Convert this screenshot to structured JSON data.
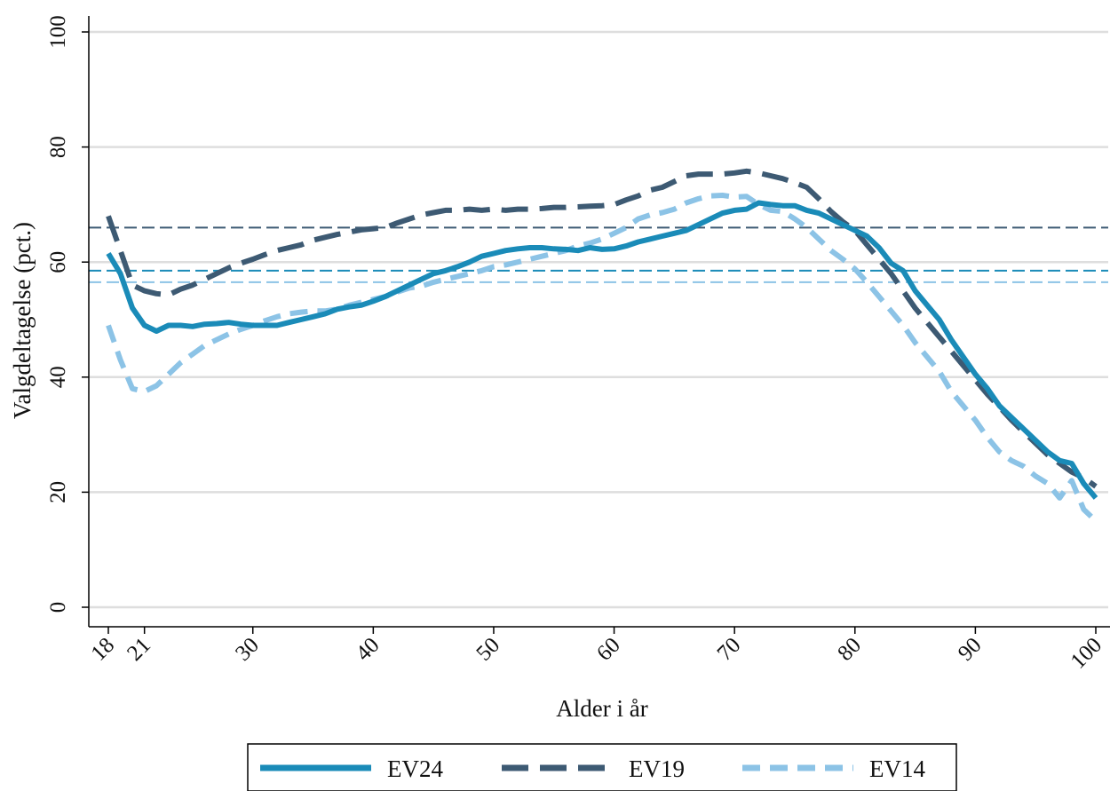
{
  "chart_data": {
    "type": "line",
    "xlabel": "Alder i år",
    "ylabel": "Valgdeltagelse (pct.)",
    "xlim": [
      18,
      100
    ],
    "ylim": [
      0,
      100
    ],
    "x_ticks": [
      18,
      21,
      30,
      40,
      50,
      60,
      70,
      80,
      90,
      100
    ],
    "y_ticks": [
      0,
      20,
      40,
      60,
      80,
      100
    ],
    "grid": "horizontal",
    "legend_position": "bottom",
    "colors": {
      "EV24": "#1a8bb8",
      "EV19": "#3d5a73",
      "EV14": "#8cc3e6",
      "grid": "#dedede"
    },
    "reference_lines": [
      {
        "series": "EV19",
        "y": 66
      },
      {
        "series": "EV24",
        "y": 58.5
      },
      {
        "series": "EV14",
        "y": 56.5
      }
    ],
    "series": [
      {
        "name": "EV24",
        "dash": "solid",
        "points": [
          [
            18,
            61.5
          ],
          [
            19,
            58
          ],
          [
            20,
            52
          ],
          [
            21,
            49
          ],
          [
            22,
            48
          ],
          [
            23,
            49
          ],
          [
            24,
            49
          ],
          [
            25,
            48.8
          ],
          [
            26,
            49.2
          ],
          [
            27,
            49.3
          ],
          [
            28,
            49.5
          ],
          [
            29,
            49.2
          ],
          [
            30,
            49
          ],
          [
            31,
            49
          ],
          [
            32,
            49
          ],
          [
            33,
            49.5
          ],
          [
            34,
            50
          ],
          [
            35,
            50.5
          ],
          [
            36,
            51
          ],
          [
            37,
            51.8
          ],
          [
            38,
            52.2
          ],
          [
            39,
            52.5
          ],
          [
            40,
            53.2
          ],
          [
            41,
            54
          ],
          [
            42,
            55
          ],
          [
            43,
            56
          ],
          [
            44,
            57
          ],
          [
            45,
            58
          ],
          [
            46,
            58.5
          ],
          [
            47,
            59.2
          ],
          [
            48,
            60
          ],
          [
            49,
            61
          ],
          [
            50,
            61.5
          ],
          [
            51,
            62
          ],
          [
            52,
            62.3
          ],
          [
            53,
            62.5
          ],
          [
            54,
            62.5
          ],
          [
            55,
            62.3
          ],
          [
            56,
            62.2
          ],
          [
            57,
            62
          ],
          [
            58,
            62.5
          ],
          [
            59,
            62.2
          ],
          [
            60,
            62.3
          ],
          [
            61,
            62.8
          ],
          [
            62,
            63.5
          ],
          [
            63,
            64
          ],
          [
            64,
            64.5
          ],
          [
            65,
            65
          ],
          [
            66,
            65.5
          ],
          [
            67,
            66.5
          ],
          [
            68,
            67.5
          ],
          [
            69,
            68.5
          ],
          [
            70,
            69
          ],
          [
            71,
            69.2
          ],
          [
            72,
            70.3
          ],
          [
            73,
            70
          ],
          [
            74,
            69.8
          ],
          [
            75,
            69.8
          ],
          [
            76,
            69
          ],
          [
            77,
            68.5
          ],
          [
            78,
            67.5
          ],
          [
            79,
            66.5
          ],
          [
            80,
            65.5
          ],
          [
            81,
            64.5
          ],
          [
            82,
            62.5
          ],
          [
            83,
            59.8
          ],
          [
            84,
            58.5
          ],
          [
            85,
            55
          ],
          [
            86,
            52.5
          ],
          [
            87,
            50
          ],
          [
            88,
            46.5
          ],
          [
            89,
            43.5
          ],
          [
            90,
            40.5
          ],
          [
            91,
            38
          ],
          [
            92,
            35
          ],
          [
            93,
            33
          ],
          [
            94,
            31
          ],
          [
            95,
            29
          ],
          [
            96,
            27
          ],
          [
            97,
            25.5
          ],
          [
            98,
            25
          ],
          [
            99,
            21.5
          ],
          [
            100,
            19
          ]
        ]
      },
      {
        "name": "EV19",
        "dash": "long-dash",
        "points": [
          [
            18,
            68
          ],
          [
            19,
            62
          ],
          [
            20,
            56
          ],
          [
            21,
            55
          ],
          [
            22,
            54.5
          ],
          [
            23,
            54.3
          ],
          [
            24,
            55.3
          ],
          [
            25,
            56
          ],
          [
            26,
            57
          ],
          [
            27,
            58
          ],
          [
            28,
            59
          ],
          [
            29,
            59.8
          ],
          [
            30,
            60.5
          ],
          [
            31,
            61.3
          ],
          [
            32,
            62
          ],
          [
            33,
            62.5
          ],
          [
            34,
            63
          ],
          [
            35,
            63.8
          ],
          [
            36,
            64.3
          ],
          [
            37,
            64.8
          ],
          [
            38,
            65.2
          ],
          [
            39,
            65.6
          ],
          [
            40,
            65.8
          ],
          [
            41,
            66
          ],
          [
            42,
            66.8
          ],
          [
            43,
            67.5
          ],
          [
            44,
            68.2
          ],
          [
            45,
            68.6
          ],
          [
            46,
            69
          ],
          [
            47,
            69
          ],
          [
            48,
            69.2
          ],
          [
            49,
            69
          ],
          [
            50,
            69.2
          ],
          [
            51,
            69
          ],
          [
            52,
            69.2
          ],
          [
            53,
            69.2
          ],
          [
            54,
            69.3
          ],
          [
            55,
            69.5
          ],
          [
            56,
            69.5
          ],
          [
            57,
            69.6
          ],
          [
            58,
            69.7
          ],
          [
            59,
            69.8
          ],
          [
            60,
            70
          ],
          [
            61,
            70.8
          ],
          [
            62,
            71.5
          ],
          [
            63,
            72.5
          ],
          [
            64,
            73
          ],
          [
            65,
            74
          ],
          [
            66,
            75
          ],
          [
            67,
            75.3
          ],
          [
            68,
            75.3
          ],
          [
            69,
            75.3
          ],
          [
            70,
            75.5
          ],
          [
            71,
            75.8
          ],
          [
            72,
            75.5
          ],
          [
            73,
            75
          ],
          [
            74,
            74.5
          ],
          [
            75,
            73.8
          ],
          [
            76,
            73
          ],
          [
            77,
            71
          ],
          [
            78,
            68.8
          ],
          [
            79,
            67
          ],
          [
            80,
            65.5
          ],
          [
            81,
            63
          ],
          [
            82,
            60.5
          ],
          [
            83,
            58
          ],
          [
            84,
            55
          ],
          [
            85,
            52
          ],
          [
            86,
            49.5
          ],
          [
            87,
            47
          ],
          [
            88,
            44.5
          ],
          [
            89,
            42
          ],
          [
            90,
            39.5
          ],
          [
            91,
            37
          ],
          [
            92,
            34.8
          ],
          [
            93,
            32.5
          ],
          [
            94,
            30.5
          ],
          [
            95,
            28.5
          ],
          [
            96,
            26.5
          ],
          [
            97,
            25
          ],
          [
            98,
            23.5
          ],
          [
            99,
            22.5
          ],
          [
            100,
            21
          ]
        ]
      },
      {
        "name": "EV14",
        "dash": "dash",
        "points": [
          [
            18,
            49
          ],
          [
            19,
            43
          ],
          [
            20,
            38
          ],
          [
            21,
            37.5
          ],
          [
            22,
            38.5
          ],
          [
            23,
            40.5
          ],
          [
            24,
            42.5
          ],
          [
            25,
            44
          ],
          [
            26,
            45.5
          ],
          [
            27,
            46.5
          ],
          [
            28,
            47.5
          ],
          [
            29,
            48.3
          ],
          [
            30,
            49
          ],
          [
            31,
            49.8
          ],
          [
            32,
            50.5
          ],
          [
            33,
            51
          ],
          [
            34,
            51.3
          ],
          [
            35,
            51.5
          ],
          [
            36,
            51.5
          ],
          [
            37,
            51.8
          ],
          [
            38,
            52.5
          ],
          [
            39,
            53
          ],
          [
            40,
            53.5
          ],
          [
            41,
            54
          ],
          [
            42,
            54.8
          ],
          [
            43,
            55.5
          ],
          [
            44,
            55.8
          ],
          [
            45,
            56.5
          ],
          [
            46,
            57
          ],
          [
            47,
            57.5
          ],
          [
            48,
            58
          ],
          [
            49,
            58.5
          ],
          [
            50,
            59.2
          ],
          [
            51,
            59.5
          ],
          [
            52,
            60
          ],
          [
            53,
            60.5
          ],
          [
            54,
            61
          ],
          [
            55,
            61.5
          ],
          [
            56,
            62
          ],
          [
            57,
            62.8
          ],
          [
            58,
            63.3
          ],
          [
            59,
            64
          ],
          [
            60,
            65
          ],
          [
            61,
            66
          ],
          [
            62,
            67.5
          ],
          [
            63,
            68.2
          ],
          [
            64,
            68.6
          ],
          [
            65,
            69.2
          ],
          [
            66,
            70.3
          ],
          [
            67,
            71
          ],
          [
            68,
            71.5
          ],
          [
            69,
            71.6
          ],
          [
            70,
            71.3
          ],
          [
            71,
            71.4
          ],
          [
            72,
            70
          ],
          [
            73,
            69
          ],
          [
            74,
            68.8
          ],
          [
            75,
            67.5
          ],
          [
            76,
            66
          ],
          [
            77,
            64
          ],
          [
            78,
            62
          ],
          [
            79,
            60.5
          ],
          [
            80,
            58.8
          ],
          [
            81,
            56.5
          ],
          [
            82,
            54
          ],
          [
            83,
            51.5
          ],
          [
            84,
            49
          ],
          [
            85,
            46
          ],
          [
            86,
            43.5
          ],
          [
            87,
            41
          ],
          [
            88,
            37.5
          ],
          [
            89,
            35
          ],
          [
            90,
            32.5
          ],
          [
            91,
            29.5
          ],
          [
            92,
            27
          ],
          [
            93,
            25.5
          ],
          [
            94,
            24.5
          ],
          [
            95,
            22.8
          ],
          [
            96,
            21.5
          ],
          [
            97,
            19
          ],
          [
            98,
            22
          ],
          [
            99,
            17
          ],
          [
            100,
            15
          ]
        ]
      }
    ]
  }
}
